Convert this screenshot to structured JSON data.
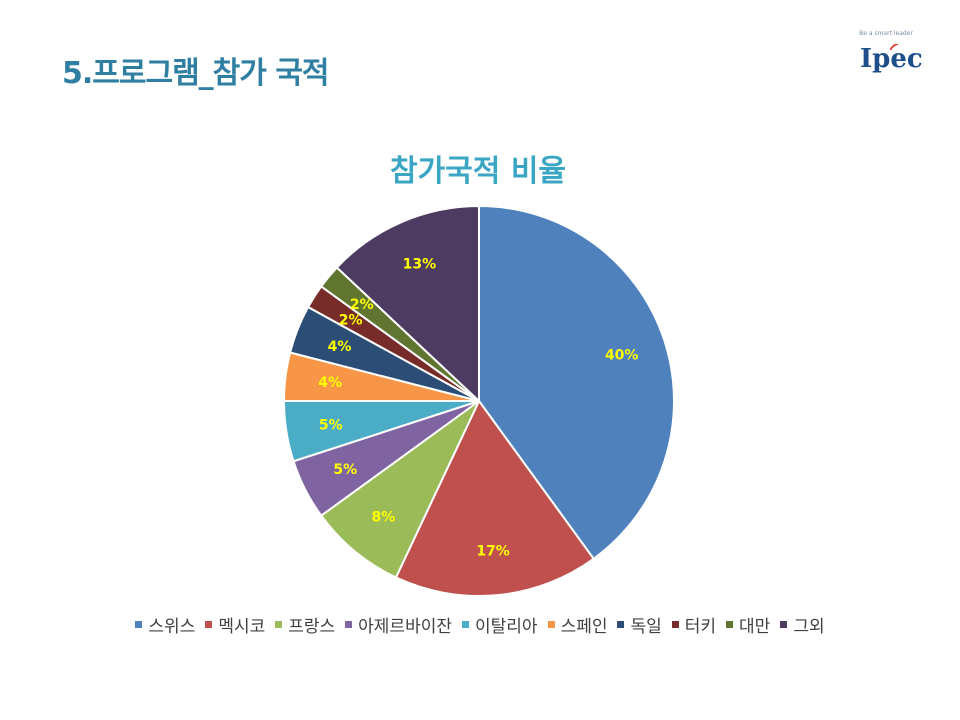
{
  "page": {
    "title": "5.프로그램_참가 국적",
    "logo": {
      "tagline": "Be a smart leader",
      "wordmark": "Ipec",
      "accent_color": "#e8453c",
      "brand_color": "#1f4f8a"
    }
  },
  "chart_data": {
    "type": "pie",
    "title": "참가국적 비율",
    "categories": [
      "스위스",
      "멕시코",
      "프랑스",
      "아제르바이잔",
      "이탈리아",
      "스페인",
      "독일",
      "터키",
      "대만",
      "그외"
    ],
    "values": [
      40,
      17,
      8,
      5,
      5,
      4,
      4,
      2,
      2,
      13
    ],
    "labels": [
      "40%",
      "17%",
      "8%",
      "5%",
      "5%",
      "4%",
      "4%",
      "2%",
      "2%",
      "13%"
    ],
    "colors": [
      "#4f81bd",
      "#c0504d",
      "#9bbb59",
      "#8064a2",
      "#4bacc6",
      "#f79646",
      "#2c4d75",
      "#772c2a",
      "#5f7530",
      "#4d3b62"
    ],
    "label_color": "#ffff00",
    "legend_position": "bottom",
    "start_angle_deg": 0,
    "direction": "clockwise"
  }
}
